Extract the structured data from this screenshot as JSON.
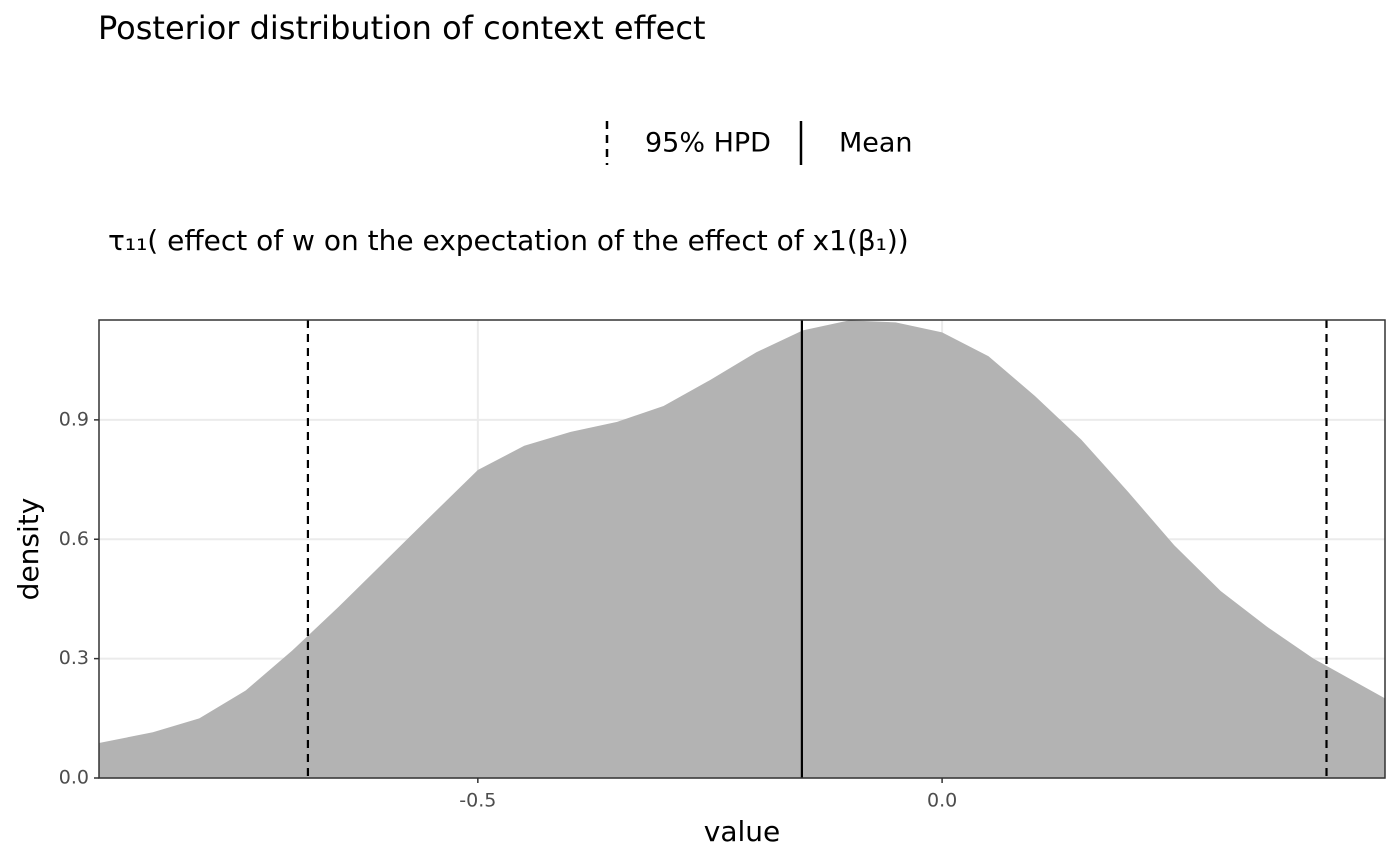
{
  "chart_data": {
    "type": "area",
    "title": "Posterior distribution of context effect",
    "subtitle": "τ₁₁( effect of w on the expectation of the effect of x1(β₁))",
    "x_label": "value",
    "y_label": "density",
    "x": [
      -0.908,
      -0.85,
      -0.8,
      -0.75,
      -0.7,
      -0.65,
      -0.6,
      -0.55,
      -0.5,
      -0.45,
      -0.4,
      -0.35,
      -0.3,
      -0.25,
      -0.2,
      -0.15,
      -0.1,
      -0.05,
      0,
      0.05,
      0.1,
      0.15,
      0.2,
      0.25,
      0.3,
      0.35,
      0.4,
      0.477
    ],
    "values": [
      0.088,
      0.115,
      0.15,
      0.22,
      0.32,
      0.43,
      0.545,
      0.66,
      0.774,
      0.835,
      0.87,
      0.895,
      0.935,
      1.0,
      1.07,
      1.125,
      1.15,
      1.145,
      1.12,
      1.06,
      0.96,
      0.85,
      0.72,
      0.585,
      0.47,
      0.38,
      0.3,
      0.2
    ],
    "color": "#b3b3b3",
    "reference_lines": [
      {
        "name": "95% HPD",
        "linetype": "dashed",
        "values": [
          -0.683,
          0.414
        ]
      },
      {
        "name": "Mean",
        "linetype": "solid",
        "values": [
          -0.151
        ]
      }
    ],
    "xlim": [
      -0.908,
      0.477
    ],
    "ylim": [
      0,
      1.151
    ],
    "xticks": [
      -0.5,
      {
        "value": 0,
        "label": "0.0"
      }
    ],
    "yticks": [
      {
        "value": 0,
        "label": "0.0"
      },
      0.3,
      0.6,
      0.9
    ],
    "grid": true
  }
}
